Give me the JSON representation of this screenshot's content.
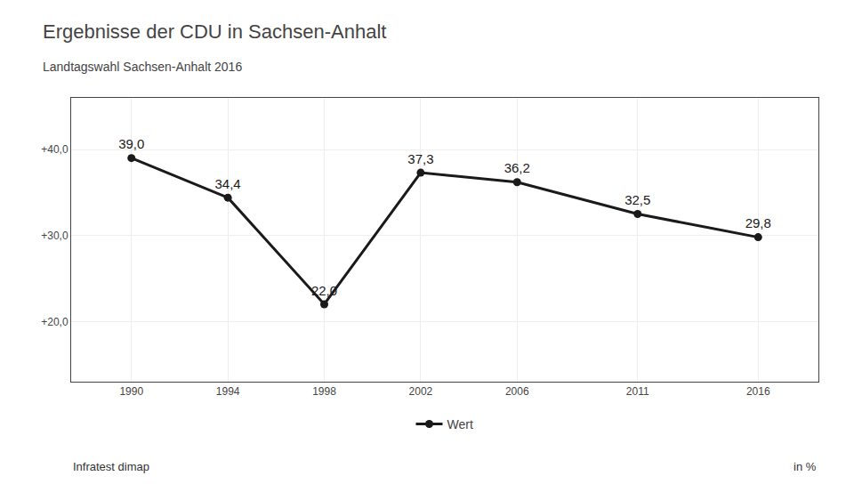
{
  "chart_data": {
    "type": "line",
    "subtitle": "Landtagswahl Sachsen-Anhalt 2016",
    "title": "Ergebnisse der CDU in Sachsen-Anhalt",
    "x": [
      1990,
      1994,
      1998,
      2002,
      2006,
      2011,
      2016
    ],
    "series": [
      {
        "name": "Wert",
        "color": "#1a1a1a",
        "marker": "circle",
        "values": [
          39.0,
          34.4,
          22.0,
          37.3,
          36.2,
          32.5,
          29.8
        ],
        "value_labels": [
          "39,0",
          "34,4",
          "22,0",
          "37,3",
          "36,2",
          "32,5",
          "29,8"
        ]
      }
    ],
    "data_labels": true,
    "xlim": [
      1987.5,
      2018.5
    ],
    "xticks": [
      1990,
      1994,
      1998,
      2002,
      2006,
      2011,
      2016
    ],
    "ylim": [
      13,
      46
    ],
    "yticks": [
      {
        "value": 20.0,
        "label": "+20,0"
      },
      {
        "value": 30.0,
        "label": "+30,0"
      },
      {
        "value": 40.0,
        "label": "+40,0"
      }
    ],
    "grid": true,
    "legend": "bottom",
    "annotations": [
      "Infratest dimap",
      "in %"
    ]
  }
}
